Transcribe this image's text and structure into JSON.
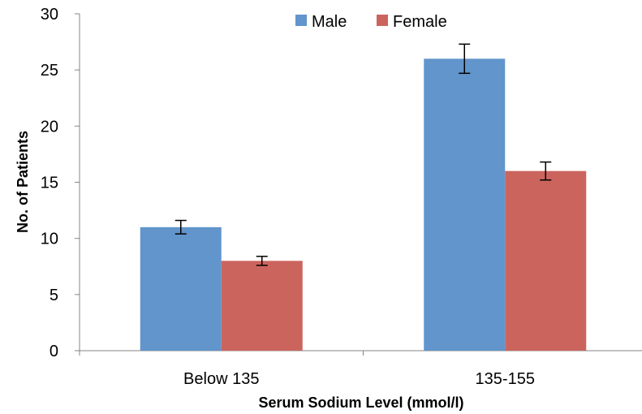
{
  "chart_data": {
    "type": "bar",
    "title": "",
    "xlabel": "Serum Sodium Level (mmol/l)",
    "ylabel": "No. of Patients",
    "categories": [
      "Below 135",
      "135-155"
    ],
    "series": [
      {
        "name": "Male",
        "values": [
          11,
          26
        ],
        "errors": [
          0.6,
          1.3
        ],
        "color": "#6195CC"
      },
      {
        "name": "Female",
        "values": [
          8,
          16
        ],
        "errors": [
          0.4,
          0.8
        ],
        "color": "#CC645E"
      }
    ],
    "ylim": [
      0,
      30
    ],
    "yticks": [
      0,
      5,
      10,
      15,
      20,
      25,
      30
    ],
    "ytick_labels": [
      "0",
      "5",
      "10",
      "15",
      "20",
      "25",
      "30"
    ],
    "grid": false,
    "legend": "top-center"
  }
}
